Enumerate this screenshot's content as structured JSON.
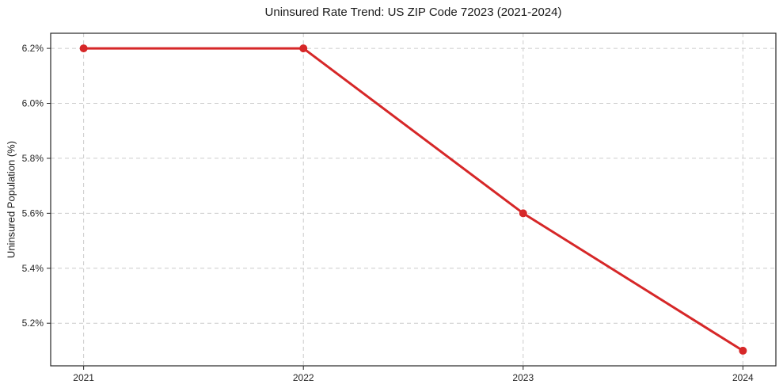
{
  "chart_data": {
    "type": "line",
    "title": "Uninsured Rate Trend: US ZIP Code 72023 (2021-2024)",
    "xlabel": "",
    "ylabel": "Uninsured Population (%)",
    "x": [
      2021,
      2022,
      2023,
      2024
    ],
    "values": [
      6.2,
      6.2,
      5.6,
      5.1
    ],
    "xticks": [
      2021,
      2022,
      2023,
      2024
    ],
    "xtick_labels": [
      "2021",
      "2022",
      "2023",
      "2024"
    ],
    "yticks": [
      5.2,
      5.4,
      5.6,
      5.8,
      6.0,
      6.2
    ],
    "ytick_labels": [
      "5.2%",
      "5.4%",
      "5.6%",
      "5.8%",
      "6.0%",
      "6.2%"
    ],
    "xlim": [
      2020.85,
      2024.15
    ],
    "ylim": [
      5.045,
      6.255
    ],
    "grid": true,
    "grid_style": "dashed",
    "legend_position": "none",
    "colors": {
      "line": "#d62728",
      "marker": "#d62728",
      "grid": "#cccccc",
      "axis": "#262626",
      "text": "#262626",
      "background": "#ffffff"
    },
    "line_width": 3,
    "marker_radius": 5
  }
}
